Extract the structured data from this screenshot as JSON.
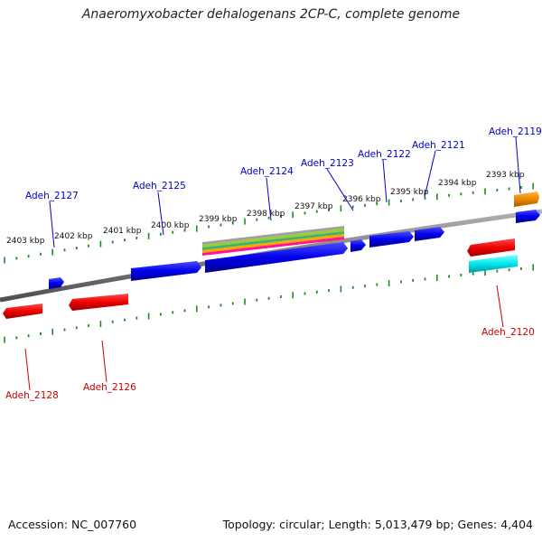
{
  "title": "Anaeromyxobacter dehalogenans 2CP-C, complete genome",
  "accession": "Accession: NC_007760",
  "summary": "Topology: circular; Length: 5,013,479 bp; Genes: 4,404",
  "colors": {
    "forward": "#0000ee",
    "reverse": "#ee0000",
    "orange_feature": "#ee8800",
    "cyan_feature": "#00e5ee",
    "backbone": "#808080",
    "ticks": "#228b22",
    "forward_label": "#0000cc",
    "reverse_label": "#cc0000"
  },
  "scale": {
    "tick_labels": [
      "2403 kbp",
      "2402 kbp",
      "2401 kbp",
      "2400 kbp",
      "2399 kbp",
      "2398 kbp",
      "2397 kbp",
      "2396 kbp",
      "2395 kbp",
      "2394 kbp",
      "2393 kbp"
    ]
  },
  "genes": [
    {
      "label": "Adeh_2119",
      "strand": "forward"
    },
    {
      "label": "Adeh_2120",
      "strand": "reverse"
    },
    {
      "label": "Adeh_2121",
      "strand": "forward"
    },
    {
      "label": "Adeh_2122",
      "strand": "forward"
    },
    {
      "label": "Adeh_2123",
      "strand": "forward"
    },
    {
      "label": "Adeh_2124",
      "strand": "forward"
    },
    {
      "label": "Adeh_2125",
      "strand": "forward"
    },
    {
      "label": "Adeh_2126",
      "strand": "reverse"
    },
    {
      "label": "Adeh_2127",
      "strand": "forward"
    },
    {
      "label": "Adeh_2128",
      "strand": "reverse"
    }
  ]
}
